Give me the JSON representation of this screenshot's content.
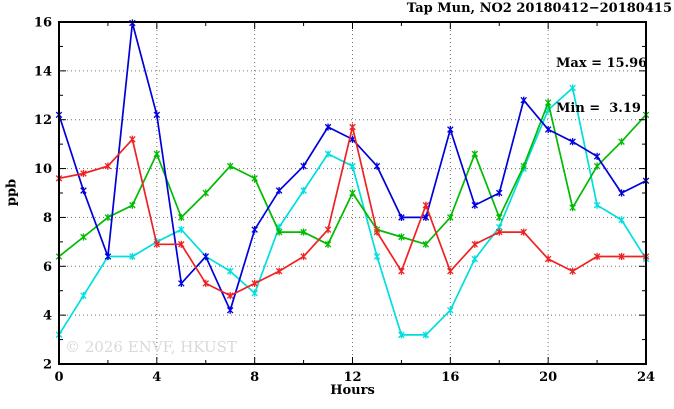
{
  "title": "Tap Mun, NO2 20180412−20180415",
  "legend": {
    "max_line": "Max = 15.96",
    "min_line": "Min =  3.19"
  },
  "watermark": "© 2026 ENVF, HKUST",
  "axes": {
    "x_label": "Hours",
    "y_label": "ppb",
    "x_range": [
      0,
      24
    ],
    "y_range": [
      2,
      16
    ],
    "x_ticks_labeled": [
      0,
      4,
      8,
      12,
      16,
      20,
      24
    ],
    "x_ticks_minor": [
      2,
      6,
      10,
      14,
      18,
      22
    ],
    "y_ticks_labeled": [
      2,
      4,
      6,
      8,
      10,
      12,
      14,
      16
    ],
    "y_ticks_minor": [
      3,
      5,
      7,
      9,
      11,
      13,
      15
    ],
    "x_gridlines": [
      4,
      8,
      12,
      16,
      20
    ],
    "y_gridlines": [
      4,
      6,
      8,
      10,
      12,
      14
    ]
  },
  "colors": {
    "background": "#ffffff",
    "grid": "#707070",
    "axis": "#000000",
    "watermark": "#d9d9d9"
  },
  "chart_data": {
    "type": "line",
    "title": "Tap Mun, NO2 20180412−20180415",
    "xlabel": "Hours",
    "ylabel": "ppb",
    "xlim": [
      0,
      24
    ],
    "ylim": [
      2,
      16
    ],
    "grid": true,
    "legend_position": "top-right-inside",
    "annotations": {
      "max": 15.96,
      "min": 3.19
    },
    "x": [
      0,
      1,
      2,
      3,
      4,
      5,
      6,
      7,
      8,
      9,
      10,
      11,
      12,
      13,
      14,
      15,
      16,
      17,
      18,
      19,
      20,
      21,
      22,
      23,
      24
    ],
    "series": [
      {
        "name": "cyan-line",
        "color": "#00dede",
        "marker": "asterisk",
        "values": [
          3.2,
          4.8,
          6.4,
          6.4,
          7.0,
          7.5,
          6.4,
          5.8,
          4.9,
          7.6,
          9.1,
          10.6,
          10.1,
          6.4,
          3.19,
          3.19,
          4.2,
          6.3,
          7.6,
          10.0,
          12.4,
          13.3,
          8.5,
          7.9,
          6.3
        ]
      },
      {
        "name": "green-line",
        "color": "#00bb00",
        "marker": "asterisk",
        "values": [
          6.4,
          7.2,
          8.0,
          8.5,
          10.6,
          8.0,
          9.0,
          10.1,
          9.6,
          7.4,
          7.4,
          6.9,
          9.0,
          7.5,
          7.2,
          6.9,
          8.0,
          10.6,
          8.0,
          10.1,
          12.7,
          8.4,
          10.1,
          11.1,
          12.2
        ]
      },
      {
        "name": "blue-line",
        "color": "#0000dd",
        "marker": "asterisk",
        "values": [
          12.2,
          9.1,
          6.4,
          15.96,
          12.2,
          5.3,
          6.4,
          4.2,
          7.5,
          9.1,
          10.1,
          11.7,
          11.2,
          10.1,
          8.0,
          8.0,
          11.6,
          8.5,
          9.0,
          12.8,
          11.6,
          11.1,
          10.5,
          9.0,
          9.5
        ]
      },
      {
        "name": "red-line",
        "color": "#ee2222",
        "marker": "asterisk",
        "values": [
          9.6,
          9.8,
          10.1,
          11.2,
          6.9,
          6.9,
          5.3,
          4.8,
          5.3,
          5.8,
          6.4,
          7.5,
          11.7,
          7.4,
          5.8,
          8.5,
          5.8,
          6.9,
          7.4,
          7.4,
          6.3,
          5.8,
          6.4,
          6.4,
          6.4
        ]
      }
    ]
  }
}
